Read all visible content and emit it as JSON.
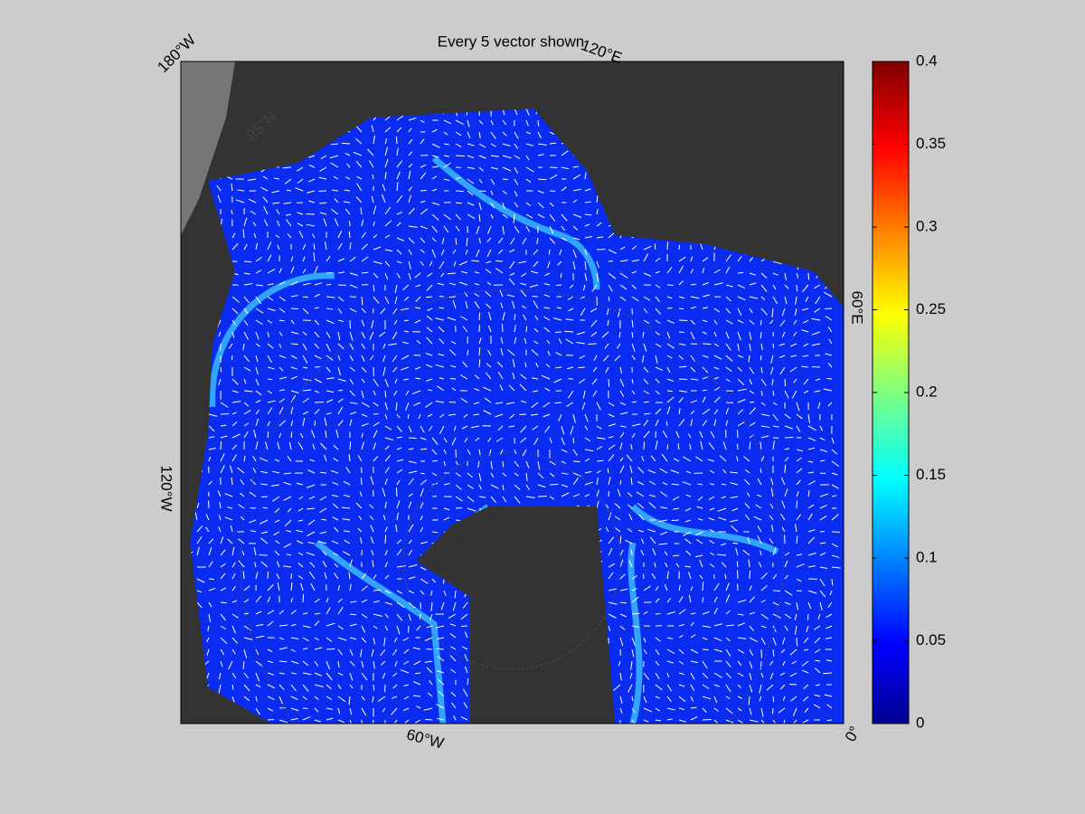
{
  "title": "Every 5 vector shown",
  "map_labels": [
    "180°W",
    "120°E",
    "60°E",
    "0°",
    "60°W",
    "120°W",
    "85°N"
  ],
  "colorbar": {
    "lim": [
      0,
      0.4
    ],
    "ticks": [
      0,
      0.05,
      0.1,
      0.15,
      0.2,
      0.25,
      0.3,
      0.35,
      0.4
    ]
  }
}
